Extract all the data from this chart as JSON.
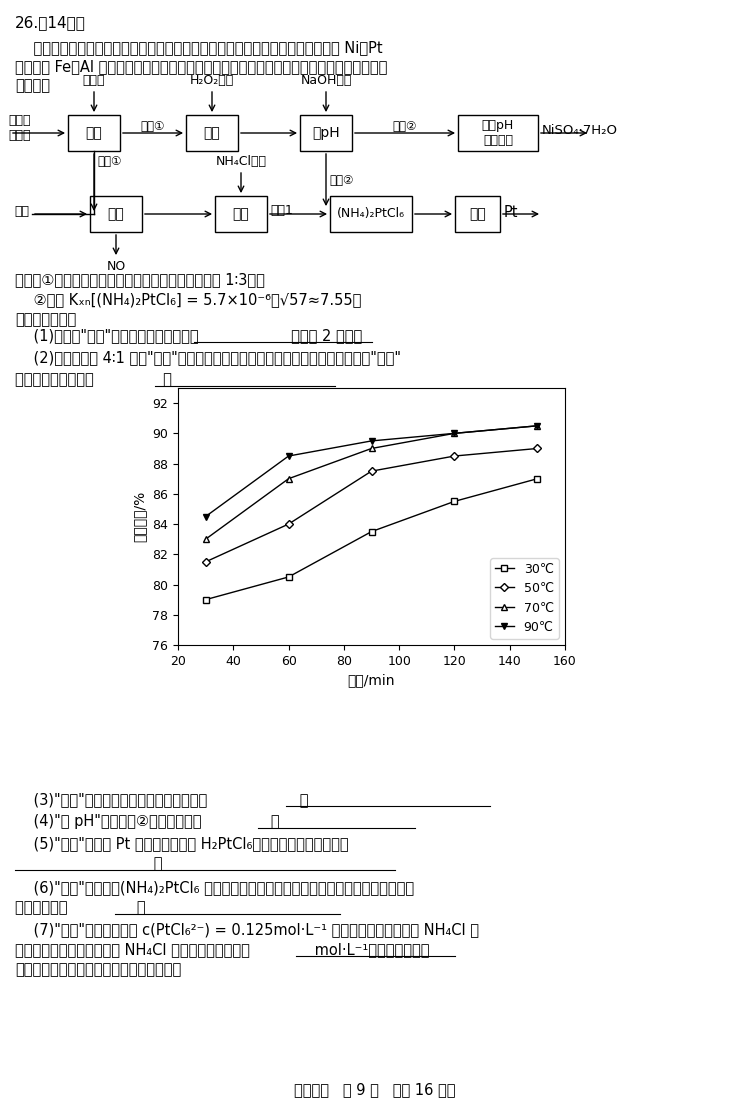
{
  "graph": {
    "x_30": [
      30,
      60,
      90,
      120,
      150
    ],
    "y_30": [
      79.0,
      80.5,
      83.5,
      85.5,
      87.0
    ],
    "x_50": [
      30,
      60,
      90,
      120,
      150
    ],
    "y_50": [
      81.5,
      84.0,
      87.5,
      88.5,
      89.0
    ],
    "x_70": [
      30,
      60,
      90,
      120,
      150
    ],
    "y_70": [
      83.0,
      87.0,
      89.0,
      90.0,
      90.5
    ],
    "x_90": [
      30,
      60,
      90,
      120,
      150
    ],
    "y_90": [
      84.5,
      88.5,
      89.5,
      90.0,
      90.5
    ],
    "xlabel": "时间/min",
    "ylabel": "镖浸出率/%",
    "xlim": [
      20,
      160
    ],
    "ylim": [
      76,
      93
    ],
    "xticks": [
      20,
      40,
      60,
      80,
      100,
      120,
      140,
      160
    ],
    "yticks": [
      76,
      78,
      80,
      82,
      84,
      86,
      88,
      90,
      92
    ],
    "legend": [
      "30℃",
      "50℃",
      "70℃",
      "90℃"
    ]
  },
  "footer": "理科综合   第 9 页   （共 16 页）"
}
